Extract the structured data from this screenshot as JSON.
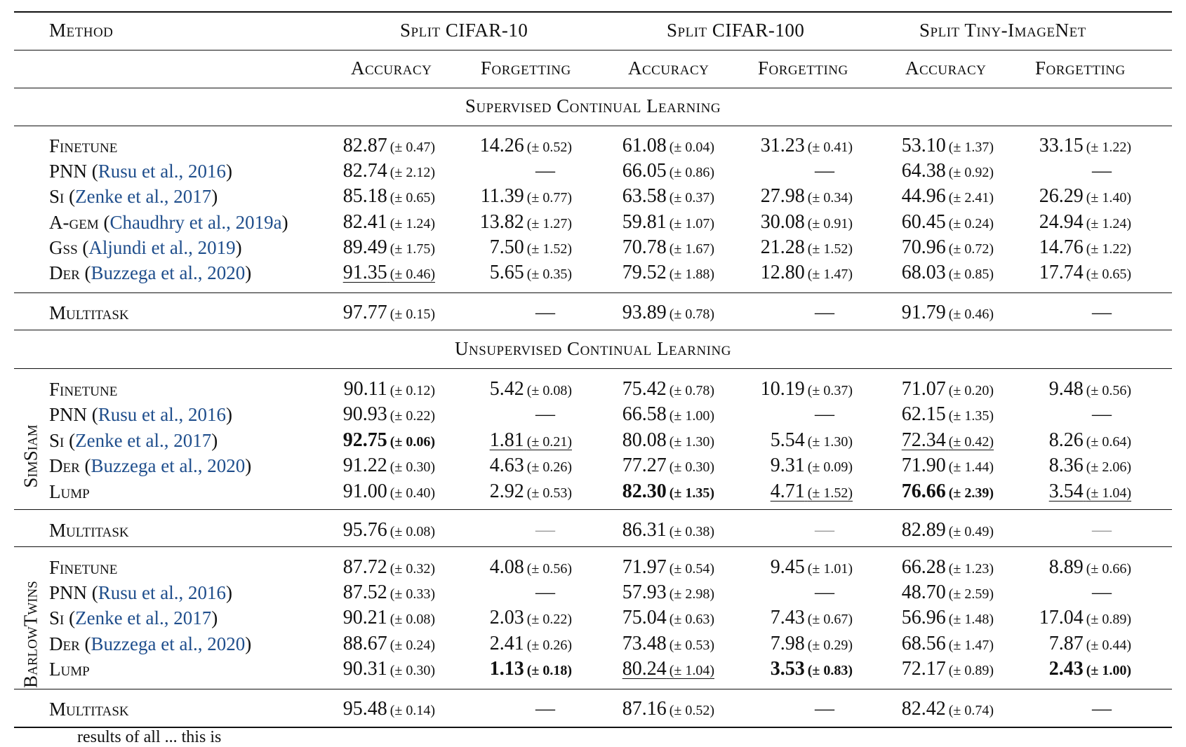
{
  "header": {
    "method": "Method",
    "datasets": [
      "Split CIFAR-10",
      "Split CIFAR-100",
      "Split Tiny-ImageNet"
    ],
    "metrics": [
      "Accuracy",
      "Forgetting",
      "Accuracy",
      "Forgetting",
      "Accuracy",
      "Forgetting"
    ]
  },
  "sections": {
    "supervised": "Supervised Continual Learning",
    "unsupervised": "Unsupervised Continual Learning"
  },
  "group_labels": {
    "simsiam": "SimSiam",
    "barlowtwins": "BarlowTwins"
  },
  "rows": [
    {
      "method": "Finetune",
      "cite": "",
      "cells": [
        [
          "82.87",
          "(± 0.47)"
        ],
        [
          "14.26",
          "(± 0.52)"
        ],
        [
          "61.08",
          "(± 0.04)"
        ],
        [
          "31.23",
          "(± 0.41)"
        ],
        [
          "53.10",
          "(± 1.37)"
        ],
        [
          "33.15",
          "(± 1.22)"
        ]
      ]
    },
    {
      "method": "PNN",
      "cite": "Rusu et al., 2016",
      "cells": [
        [
          "82.74",
          "(± 2.12)"
        ],
        [
          "—",
          ""
        ],
        [
          "66.05",
          "(± 0.86)"
        ],
        [
          "—",
          ""
        ],
        [
          "64.38",
          "(± 0.92)"
        ],
        [
          "—",
          ""
        ]
      ]
    },
    {
      "method": "Si",
      "cite": "Zenke et al., 2017",
      "cells": [
        [
          "85.18",
          "(± 0.65)"
        ],
        [
          "11.39",
          "(± 0.77)"
        ],
        [
          "63.58",
          "(± 0.37)"
        ],
        [
          "27.98",
          "(± 0.34)"
        ],
        [
          "44.96",
          "(± 2.41)"
        ],
        [
          "26.29",
          "(± 1.40)"
        ]
      ]
    },
    {
      "method": "A-gem",
      "cite": "Chaudhry et al., 2019a",
      "cells": [
        [
          "82.41",
          "(± 1.24)"
        ],
        [
          "13.82",
          "(± 1.27)"
        ],
        [
          "59.81",
          "(± 1.07)"
        ],
        [
          "30.08",
          "(± 0.91)"
        ],
        [
          "60.45",
          "(± 0.24)"
        ],
        [
          "24.94",
          "(± 1.24)"
        ]
      ]
    },
    {
      "method": "Gss",
      "cite": "Aljundi et al., 2019",
      "cells": [
        [
          "89.49",
          "(± 1.75)"
        ],
        [
          "7.50",
          "(± 1.52)"
        ],
        [
          "70.78",
          "(± 1.67)"
        ],
        [
          "21.28",
          "(± 1.52)"
        ],
        [
          "70.96",
          "(± 0.72)"
        ],
        [
          "14.76",
          "(± 1.22)"
        ]
      ]
    },
    {
      "method": "Der",
      "cite": "Buzzega et al., 2020",
      "cells": [
        [
          "91.35",
          "(± 0.46)"
        ],
        [
          "5.65",
          "(± 0.35)"
        ],
        [
          "79.52",
          "(± 1.88)"
        ],
        [
          "12.80",
          "(± 1.47)"
        ],
        [
          "68.03",
          "(± 0.85)"
        ],
        [
          "17.74",
          "(± 0.65)"
        ]
      ]
    },
    {
      "method": "Multitask",
      "cite": "",
      "cells": [
        [
          "97.77",
          "(± 0.15)"
        ],
        [
          "—",
          ""
        ],
        [
          "93.89",
          "(± 0.78)"
        ],
        [
          "—",
          ""
        ],
        [
          "91.79",
          "(± 0.46)"
        ],
        [
          "—",
          ""
        ]
      ]
    },
    {
      "method": "Finetune",
      "cite": "",
      "cells": [
        [
          "90.11",
          "(± 0.12)"
        ],
        [
          "5.42",
          "(± 0.08)"
        ],
        [
          "75.42",
          "(± 0.78)"
        ],
        [
          "10.19",
          "(± 0.37)"
        ],
        [
          "71.07",
          "(± 0.20)"
        ],
        [
          "9.48",
          "(± 0.56)"
        ]
      ]
    },
    {
      "method": "PNN",
      "cite": "Rusu et al., 2016",
      "cells": [
        [
          "90.93",
          "(± 0.22)"
        ],
        [
          "—",
          ""
        ],
        [
          "66.58",
          "(± 1.00)"
        ],
        [
          "—",
          ""
        ],
        [
          "62.15",
          "(± 1.35)"
        ],
        [
          "—",
          ""
        ]
      ]
    },
    {
      "method": "Si",
      "cite": "Zenke et al., 2017",
      "cells": [
        [
          "92.75",
          "(± 0.06)"
        ],
        [
          "1.81",
          "(± 0.21)"
        ],
        [
          "80.08",
          "(± 1.30)"
        ],
        [
          "5.54",
          "(± 1.30)"
        ],
        [
          "72.34",
          "(± 0.42)"
        ],
        [
          "8.26",
          "(± 0.64)"
        ]
      ]
    },
    {
      "method": "Der",
      "cite": "Buzzega et al., 2020",
      "cells": [
        [
          "91.22",
          "(± 0.30)"
        ],
        [
          "4.63",
          "(± 0.26)"
        ],
        [
          "77.27",
          "(± 0.30)"
        ],
        [
          "9.31",
          "(± 0.09)"
        ],
        [
          "71.90",
          "(± 1.44)"
        ],
        [
          "8.36",
          "(± 2.06)"
        ]
      ]
    },
    {
      "method": "Lump",
      "cite": "",
      "cells": [
        [
          "91.00",
          "(± 0.40)"
        ],
        [
          "2.92",
          "(± 0.53)"
        ],
        [
          "82.30",
          "(± 1.35)"
        ],
        [
          "4.71",
          "(± 1.52)"
        ],
        [
          "76.66",
          "(± 2.39)"
        ],
        [
          "3.54",
          "(± 1.04)"
        ]
      ]
    },
    {
      "method": "Multitask",
      "cite": "",
      "cells": [
        [
          "95.76",
          "(± 0.08)"
        ],
        [
          "—",
          ""
        ],
        [
          "86.31",
          "(± 0.38)"
        ],
        [
          "—",
          ""
        ],
        [
          "82.89",
          "(± 0.49)"
        ],
        [
          "—",
          ""
        ]
      ]
    },
    {
      "method": "Finetune",
      "cite": "",
      "cells": [
        [
          "87.72",
          "(± 0.32)"
        ],
        [
          "4.08",
          "(± 0.56)"
        ],
        [
          "71.97",
          "(± 0.54)"
        ],
        [
          "9.45",
          "(± 1.01)"
        ],
        [
          "66.28",
          "(± 1.23)"
        ],
        [
          "8.89",
          "(± 0.66)"
        ]
      ]
    },
    {
      "method": "PNN",
      "cite": "Rusu et al., 2016",
      "cells": [
        [
          "87.52",
          "(± 0.33)"
        ],
        [
          "—",
          ""
        ],
        [
          "57.93",
          "(± 2.98)"
        ],
        [
          "—",
          ""
        ],
        [
          "48.70",
          "(± 2.59)"
        ],
        [
          "—",
          ""
        ]
      ]
    },
    {
      "method": "Si",
      "cite": "Zenke et al., 2017",
      "cells": [
        [
          "90.21",
          "(± 0.08)"
        ],
        [
          "2.03",
          "(± 0.22)"
        ],
        [
          "75.04",
          "(± 0.63)"
        ],
        [
          "7.43",
          "(± 0.67)"
        ],
        [
          "56.96",
          "(± 1.48)"
        ],
        [
          "17.04",
          "(± 0.89)"
        ]
      ]
    },
    {
      "method": "Der",
      "cite": "Buzzega et al., 2020",
      "cells": [
        [
          "88.67",
          "(± 0.24)"
        ],
        [
          "2.41",
          "(± 0.26)"
        ],
        [
          "73.48",
          "(± 0.53)"
        ],
        [
          "7.98",
          "(± 0.29)"
        ],
        [
          "68.56",
          "(± 1.47)"
        ],
        [
          "7.87",
          "(± 0.44)"
        ]
      ]
    },
    {
      "method": "Lump",
      "cite": "",
      "cells": [
        [
          "90.31",
          "(± 0.30)"
        ],
        [
          "1.13",
          "(± 0.18)"
        ],
        [
          "80.24",
          "(± 1.04)"
        ],
        [
          "3.53",
          "(± 0.83)"
        ],
        [
          "72.17",
          "(± 0.89)"
        ],
        [
          "2.43",
          "(± 1.00)"
        ]
      ]
    },
    {
      "method": "Multitask",
      "cite": "",
      "cells": [
        [
          "95.48",
          "(± 0.14)"
        ],
        [
          "—",
          ""
        ],
        [
          "87.16",
          "(± 0.52)"
        ],
        [
          "—",
          ""
        ],
        [
          "82.42",
          "(± 0.74)"
        ],
        [
          "—",
          ""
        ]
      ]
    }
  ],
  "footer_fragment": "results of all ... this is"
}
